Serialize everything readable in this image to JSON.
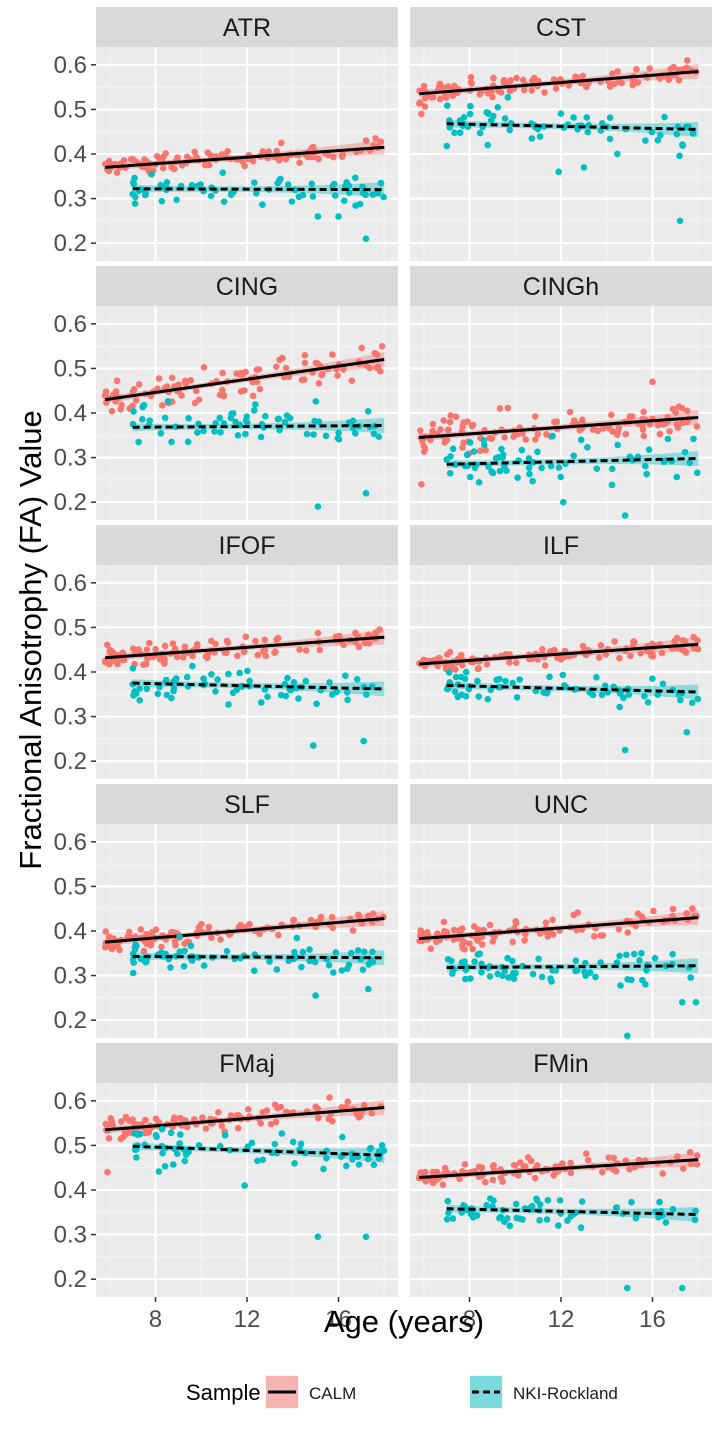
{
  "chart_data": {
    "type": "scatter",
    "title": "",
    "xlabel": "Age (years)",
    "ylabel": "Fractional Anisotrophy (FA) Value",
    "xlim": [
      5.4,
      18.6
    ],
    "ylim": [
      0.16,
      0.64
    ],
    "xticks": [
      8,
      12,
      16
    ],
    "xtick_labels": [
      "8",
      "12",
      "16"
    ],
    "yticks": [
      0.2,
      0.3,
      0.4,
      0.5,
      0.6
    ],
    "ytick_labels": [
      "0.2",
      "0.3",
      "0.4",
      "0.5",
      "0.6"
    ],
    "grid": true,
    "legend": {
      "title": "Sample",
      "position": "bottom",
      "entries": [
        {
          "name": "CALM",
          "color": "#F8766D",
          "line": "solid"
        },
        {
          "name": "NKI-Rockland",
          "color": "#00BFC4",
          "line": "dashed"
        }
      ]
    },
    "series_colors": {
      "CALM": "#F8766D",
      "NKI-Rockland": "#00BFC4",
      "fit": "#000000"
    },
    "panels": [
      {
        "name": "ATR",
        "CALM": {
          "x_range": [
            5.8,
            18.0
          ],
          "fit": [
            0.37,
            0.415
          ],
          "spread": 0.018,
          "outliers": [
            [
              17.2,
              0.43
            ],
            [
              13.5,
              0.425
            ]
          ]
        },
        "NKI-Rockland": {
          "x_range": [
            7.0,
            18.0
          ],
          "fit": [
            0.322,
            0.32
          ],
          "spread": 0.03,
          "outliers": [
            [
              17.2,
              0.21
            ],
            [
              15.1,
              0.26
            ],
            [
              16.0,
              0.26
            ]
          ]
        }
      },
      {
        "name": "CST",
        "CALM": {
          "x_range": [
            5.8,
            18.0
          ],
          "fit": [
            0.535,
            0.585
          ],
          "spread": 0.025,
          "outliers": [
            [
              5.9,
              0.49
            ]
          ]
        },
        "NKI-Rockland": {
          "x_range": [
            7.0,
            18.0
          ],
          "fit": [
            0.468,
            0.455
          ],
          "spread": 0.045,
          "outliers": [
            [
              17.2,
              0.25
            ],
            [
              11.9,
              0.36
            ],
            [
              13.0,
              0.37
            ]
          ]
        }
      },
      {
        "name": "CING",
        "CALM": {
          "x_range": [
            5.8,
            18.0
          ],
          "fit": [
            0.43,
            0.52
          ],
          "spread": 0.035,
          "outliers": []
        },
        "NKI-Rockland": {
          "x_range": [
            7.0,
            18.0
          ],
          "fit": [
            0.368,
            0.372
          ],
          "spread": 0.045,
          "outliers": [
            [
              15.1,
              0.19
            ],
            [
              17.2,
              0.22
            ]
          ]
        }
      },
      {
        "name": "CINGh",
        "CALM": {
          "x_range": [
            5.8,
            18.0
          ],
          "fit": [
            0.345,
            0.39
          ],
          "spread": 0.04,
          "outliers": [
            [
              16.0,
              0.47
            ],
            [
              5.9,
              0.24
            ]
          ]
        },
        "NKI-Rockland": {
          "x_range": [
            7.0,
            18.0
          ],
          "fit": [
            0.285,
            0.298
          ],
          "spread": 0.045,
          "outliers": [
            [
              14.8,
              0.17
            ],
            [
              12.1,
              0.2
            ]
          ]
        }
      },
      {
        "name": "IFOF",
        "CALM": {
          "x_range": [
            5.8,
            18.0
          ],
          "fit": [
            0.432,
            0.478
          ],
          "spread": 0.022,
          "outliers": []
        },
        "NKI-Rockland": {
          "x_range": [
            7.0,
            18.0
          ],
          "fit": [
            0.375,
            0.362
          ],
          "spread": 0.035,
          "outliers": [
            [
              14.9,
              0.235
            ],
            [
              17.1,
              0.245
            ]
          ]
        }
      },
      {
        "name": "ILF",
        "CALM": {
          "x_range": [
            5.8,
            18.0
          ],
          "fit": [
            0.418,
            0.462
          ],
          "spread": 0.022,
          "outliers": []
        },
        "NKI-Rockland": {
          "x_range": [
            7.0,
            18.0
          ],
          "fit": [
            0.37,
            0.355
          ],
          "spread": 0.035,
          "outliers": [
            [
              14.8,
              0.225
            ],
            [
              17.5,
              0.265
            ]
          ]
        }
      },
      {
        "name": "SLF",
        "CALM": {
          "x_range": [
            5.8,
            18.0
          ],
          "fit": [
            0.375,
            0.428
          ],
          "spread": 0.02,
          "outliers": []
        },
        "NKI-Rockland": {
          "x_range": [
            7.0,
            18.0
          ],
          "fit": [
            0.343,
            0.34
          ],
          "spread": 0.03,
          "outliers": [
            [
              15.0,
              0.255
            ],
            [
              17.3,
              0.27
            ]
          ]
        }
      },
      {
        "name": "UNC",
        "CALM": {
          "x_range": [
            5.8,
            18.0
          ],
          "fit": [
            0.383,
            0.43
          ],
          "spread": 0.025,
          "outliers": []
        },
        "NKI-Rockland": {
          "x_range": [
            7.0,
            18.0
          ],
          "fit": [
            0.318,
            0.322
          ],
          "spread": 0.035,
          "outliers": [
            [
              14.9,
              0.165
            ],
            [
              17.3,
              0.24
            ],
            [
              17.9,
              0.24
            ]
          ]
        }
      },
      {
        "name": "FMaj",
        "CALM": {
          "x_range": [
            5.8,
            18.0
          ],
          "fit": [
            0.535,
            0.585
          ],
          "spread": 0.025,
          "outliers": [
            [
              5.9,
              0.44
            ]
          ]
        },
        "NKI-Rockland": {
          "x_range": [
            7.0,
            18.0
          ],
          "fit": [
            0.498,
            0.478
          ],
          "spread": 0.04,
          "outliers": [
            [
              15.1,
              0.295
            ],
            [
              17.2,
              0.295
            ],
            [
              11.9,
              0.41
            ]
          ]
        }
      },
      {
        "name": "FMin",
        "CALM": {
          "x_range": [
            5.8,
            18.0
          ],
          "fit": [
            0.428,
            0.468
          ],
          "spread": 0.02,
          "outliers": []
        },
        "NKI-Rockland": {
          "x_range": [
            7.0,
            18.0
          ],
          "fit": [
            0.358,
            0.345
          ],
          "spread": 0.03,
          "outliers": [
            [
              14.9,
              0.18
            ],
            [
              17.3,
              0.18
            ]
          ]
        }
      }
    ]
  }
}
